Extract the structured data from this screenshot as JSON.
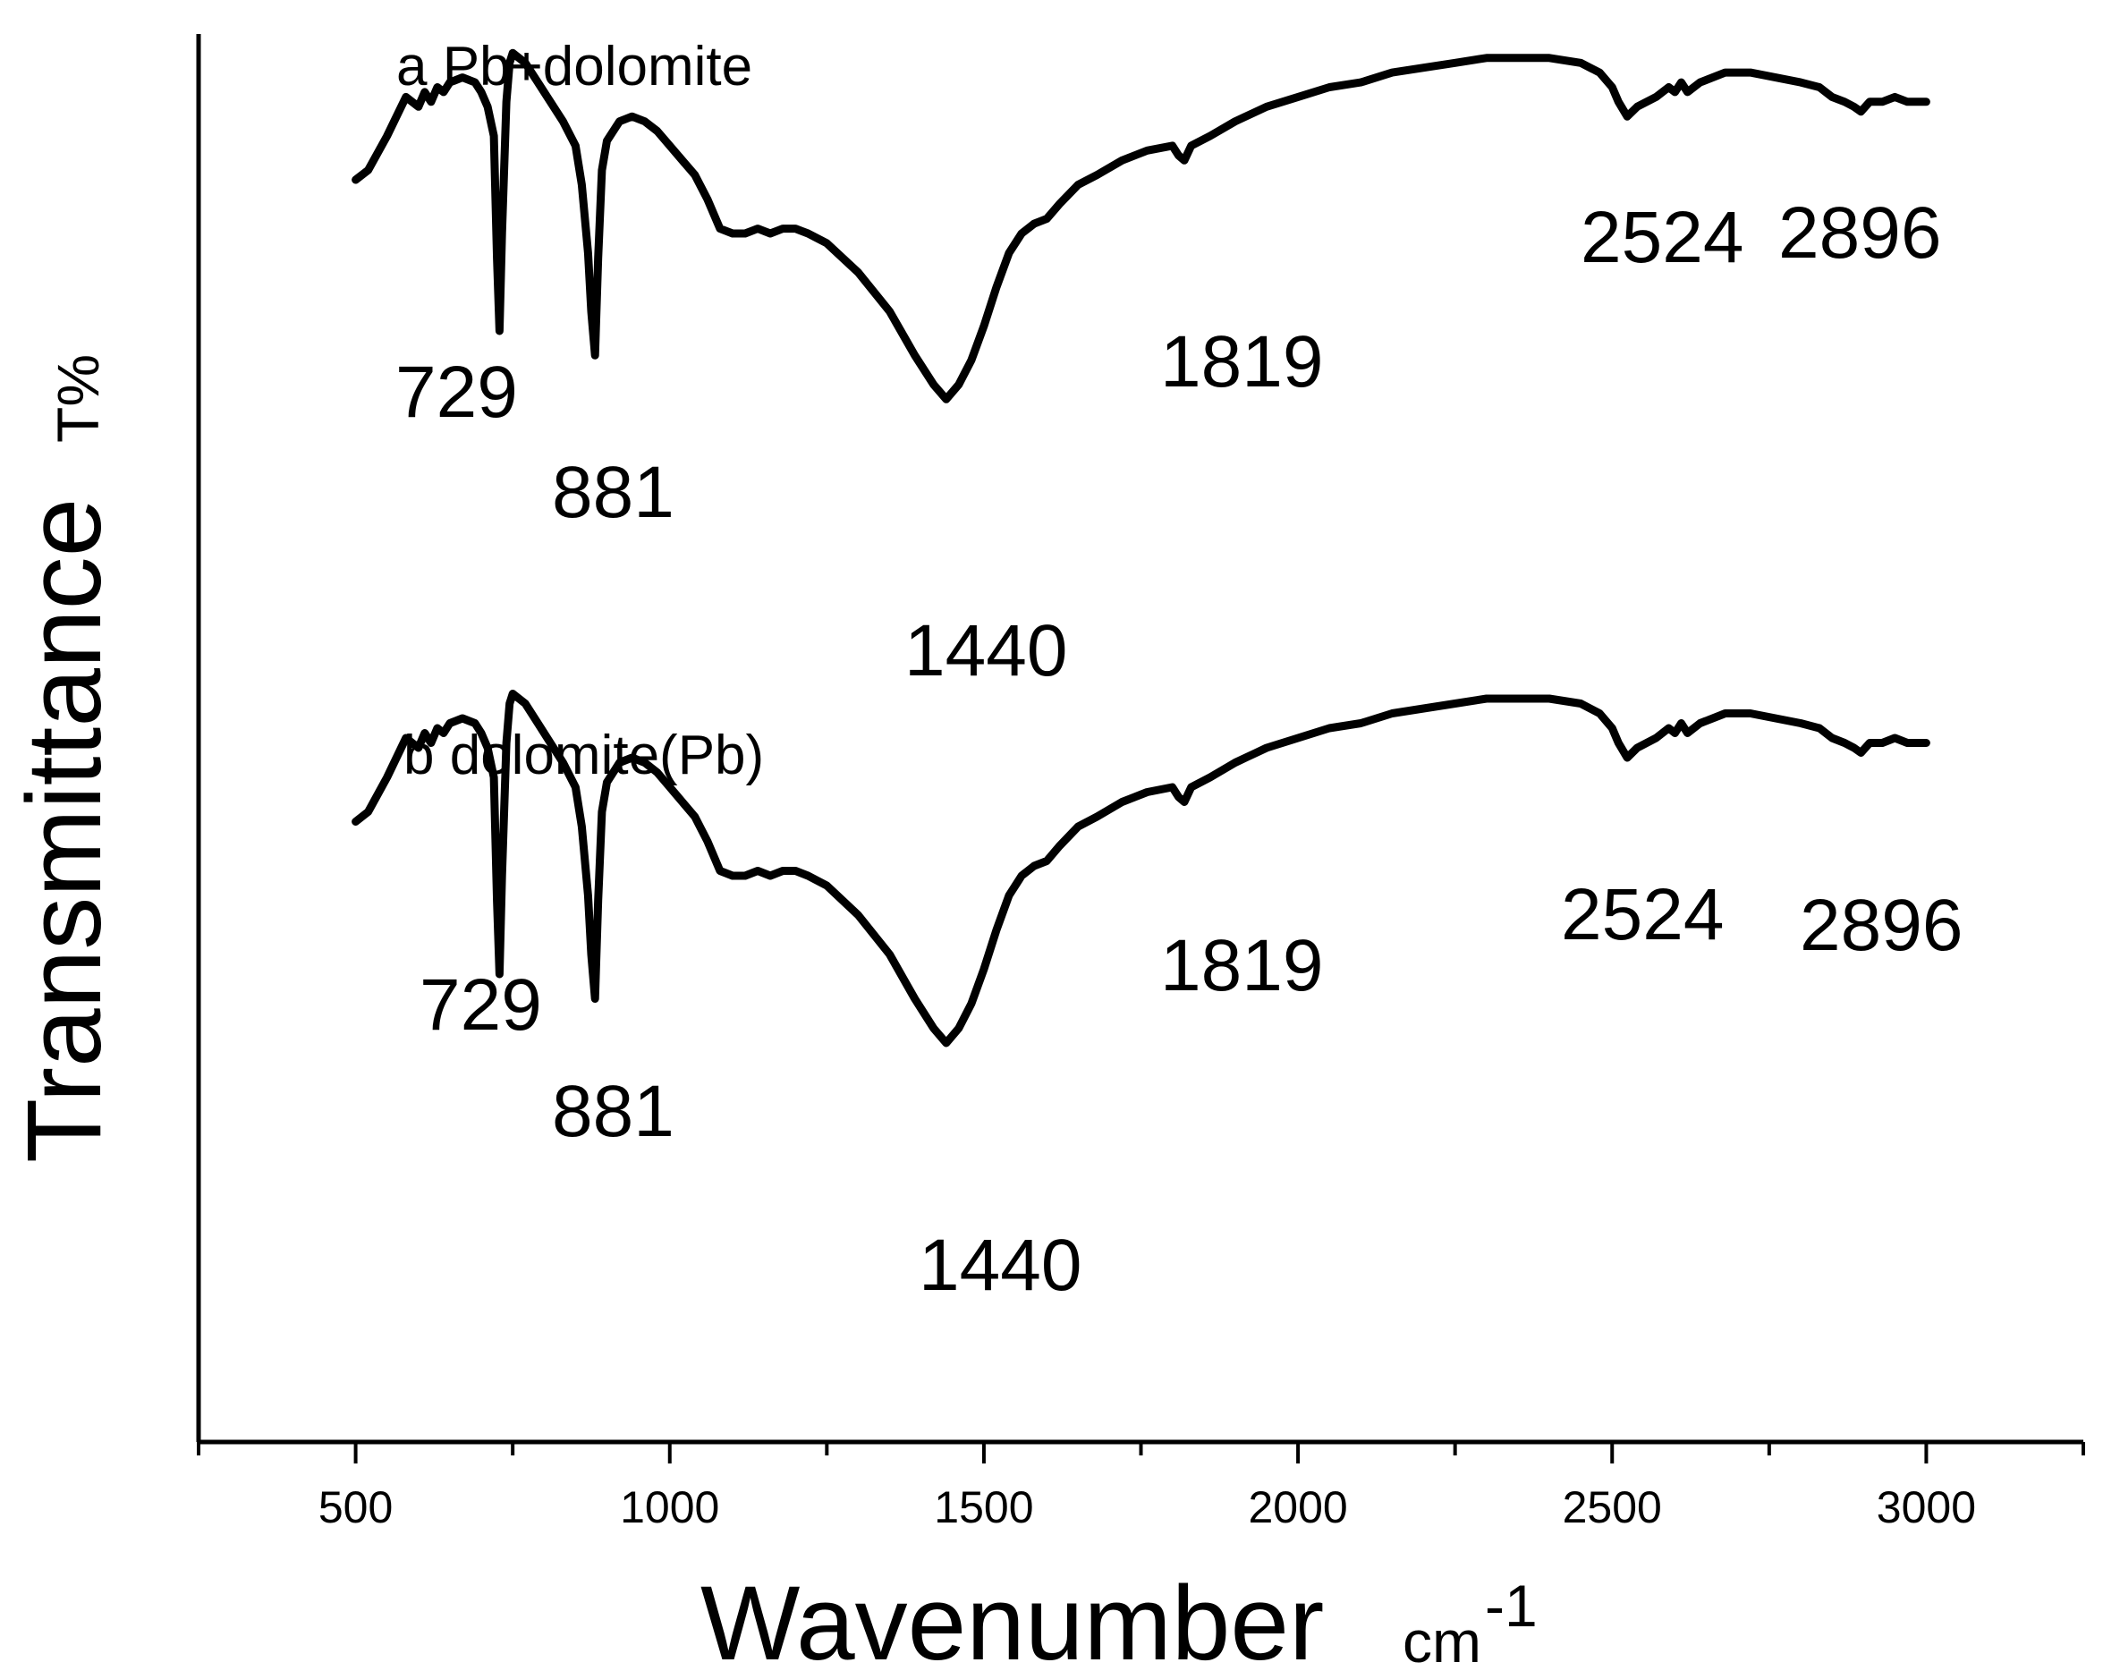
{
  "chart_data": {
    "type": "line",
    "xlabel": "Wavenumber",
    "xlabel_unit": "cm",
    "xlabel_unit_exp": "-1",
    "ylabel": "Transmittance",
    "ylabel_unit": "T%",
    "xlim": [
      250,
      3250
    ],
    "x_ticks": [
      500,
      1000,
      1500,
      2000,
      2500,
      3000
    ],
    "x_minor_ticks": [
      250,
      750,
      1250,
      1750,
      2250,
      2750,
      3250
    ],
    "grid": false,
    "y_ticks_shown": false,
    "series": [
      {
        "name": "a Pb+dolomite",
        "x": [
          500,
          520,
          550,
          580,
          600,
          610,
          620,
          630,
          640,
          650,
          670,
          690,
          700,
          710,
          720,
          725,
          729,
          733,
          740,
          745,
          750,
          770,
          790,
          810,
          830,
          850,
          860,
          870,
          875,
          881,
          886,
          892,
          900,
          920,
          940,
          960,
          980,
          1000,
          1020,
          1040,
          1060,
          1080,
          1100,
          1120,
          1140,
          1160,
          1180,
          1200,
          1220,
          1250,
          1300,
          1350,
          1390,
          1420,
          1440,
          1460,
          1480,
          1500,
          1520,
          1540,
          1560,
          1580,
          1600,
          1620,
          1650,
          1680,
          1720,
          1760,
          1800,
          1810,
          1819,
          1830,
          1860,
          1900,
          1950,
          2000,
          2050,
          2100,
          2150,
          2200,
          2250,
          2300,
          2350,
          2400,
          2450,
          2480,
          2500,
          2510,
          2524,
          2540,
          2570,
          2590,
          2600,
          2610,
          2620,
          2640,
          2680,
          2720,
          2760,
          2800,
          2830,
          2850,
          2870,
          2885,
          2896,
          2910,
          2930,
          2950,
          2970,
          3000
        ],
        "y": [
          31,
          33,
          40,
          48,
          46,
          49,
          47,
          50,
          49,
          51,
          52,
          51,
          49,
          46,
          40,
          15,
          0,
          20,
          47,
          55,
          57,
          55,
          51,
          47,
          43,
          38,
          30,
          16,
          4,
          -5,
          15,
          33,
          39,
          43,
          44,
          43,
          41,
          38,
          35,
          32,
          27,
          21,
          20,
          20,
          21,
          20,
          21,
          21,
          20,
          18,
          12,
          4,
          -5,
          -11,
          -14,
          -11,
          -6,
          1,
          9,
          16,
          20,
          22,
          23,
          26,
          30,
          32,
          35,
          37,
          38,
          36,
          35,
          38,
          40,
          43,
          46,
          48,
          50,
          51,
          53,
          54,
          55,
          56,
          56,
          56,
          55,
          53,
          50,
          47,
          44,
          46,
          48,
          50,
          49,
          51,
          49,
          51,
          53,
          53,
          52,
          51,
          50,
          48,
          47,
          46,
          45,
          47,
          47,
          48,
          47,
          47
        ],
        "peak_labels": [
          "729",
          "881",
          "1440",
          "1819",
          "2524",
          "2896"
        ]
      },
      {
        "name": "b dolomite(Pb)",
        "x": [
          500,
          520,
          550,
          580,
          600,
          610,
          620,
          630,
          640,
          650,
          670,
          690,
          700,
          710,
          720,
          725,
          729,
          733,
          740,
          745,
          750,
          770,
          790,
          810,
          830,
          850,
          860,
          870,
          875,
          881,
          886,
          892,
          900,
          920,
          940,
          960,
          980,
          1000,
          1020,
          1040,
          1060,
          1080,
          1100,
          1120,
          1140,
          1160,
          1180,
          1200,
          1220,
          1250,
          1300,
          1350,
          1390,
          1420,
          1440,
          1460,
          1480,
          1500,
          1520,
          1540,
          1560,
          1580,
          1600,
          1620,
          1650,
          1680,
          1720,
          1760,
          1800,
          1810,
          1819,
          1830,
          1860,
          1900,
          1950,
          2000,
          2050,
          2100,
          2150,
          2200,
          2250,
          2300,
          2350,
          2400,
          2450,
          2480,
          2500,
          2510,
          2524,
          2540,
          2570,
          2590,
          2600,
          2610,
          2620,
          2640,
          2680,
          2720,
          2760,
          2800,
          2830,
          2850,
          2870,
          2885,
          2896,
          2910,
          2930,
          2950,
          2970,
          3000
        ],
        "y": [
          31,
          33,
          40,
          48,
          46,
          49,
          47,
          50,
          49,
          51,
          52,
          51,
          49,
          46,
          40,
          15,
          0,
          20,
          47,
          55,
          57,
          55,
          51,
          47,
          43,
          38,
          30,
          16,
          4,
          -5,
          15,
          33,
          39,
          43,
          44,
          43,
          41,
          38,
          35,
          32,
          27,
          21,
          20,
          20,
          21,
          20,
          21,
          21,
          20,
          18,
          12,
          4,
          -5,
          -11,
          -14,
          -11,
          -6,
          1,
          9,
          16,
          20,
          22,
          23,
          26,
          30,
          32,
          35,
          37,
          38,
          36,
          35,
          38,
          40,
          43,
          46,
          48,
          50,
          51,
          53,
          54,
          55,
          56,
          56,
          56,
          55,
          53,
          50,
          47,
          44,
          46,
          48,
          50,
          49,
          51,
          49,
          51,
          53,
          53,
          52,
          51,
          50,
          48,
          47,
          46,
          45,
          47,
          47,
          48,
          47,
          47
        ],
        "peak_labels": [
          "729",
          "881",
          "1440",
          "1819",
          "2524",
          "2896"
        ]
      }
    ]
  }
}
